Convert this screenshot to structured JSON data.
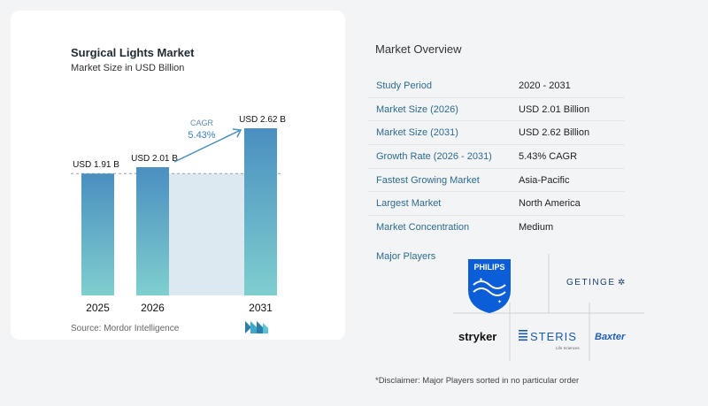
{
  "chart": {
    "title": "Surgical Lights Market",
    "subtitle": "Market Size in USD Billion",
    "source": "Source:  Mordor Intelligence"
  },
  "chart_data": {
    "type": "bar",
    "title": "Surgical Lights Market",
    "subtitle": "Market Size in USD Billion",
    "categories": [
      "2025",
      "2026",
      "2031"
    ],
    "values": [
      1.91,
      2.01,
      2.62
    ],
    "data_labels": [
      "USD 1.91 B",
      "USD 2.01 B",
      "USD 2.62 B"
    ],
    "annotation": {
      "label": "CAGR",
      "value": "5.43%"
    },
    "ylim": [
      0,
      2.62
    ],
    "grid": false,
    "colors": {
      "bar_top": "#4a8fc0",
      "bar_bottom": "#7fcfcf",
      "band": "#dde9f1",
      "arrow": "#4a8fc0"
    }
  },
  "overview": {
    "title": "Market Overview",
    "rows": [
      {
        "label": "Study Period",
        "value": "2020 - 2031"
      },
      {
        "label": "Market Size (2026)",
        "value": "USD 2.01 Billion"
      },
      {
        "label": "Market Size (2031)",
        "value": "USD 2.62 Billion"
      },
      {
        "label": "Growth Rate (2026 - 2031)",
        "value": "5.43% CAGR"
      },
      {
        "label": "Fastest Growing Market",
        "value": "Asia-Pacific"
      },
      {
        "label": "Largest Market",
        "value": "North America"
      },
      {
        "label": "Market Concentration",
        "value": "Medium"
      }
    ],
    "players_label": "Major Players",
    "players": [
      "PHILIPS",
      "GETINGE",
      "stryker",
      "STERIS",
      "Baxter"
    ],
    "steris_tagline": "Life Sciences",
    "disclaimer": "*Disclaimer: Major Players sorted in no particular order"
  }
}
